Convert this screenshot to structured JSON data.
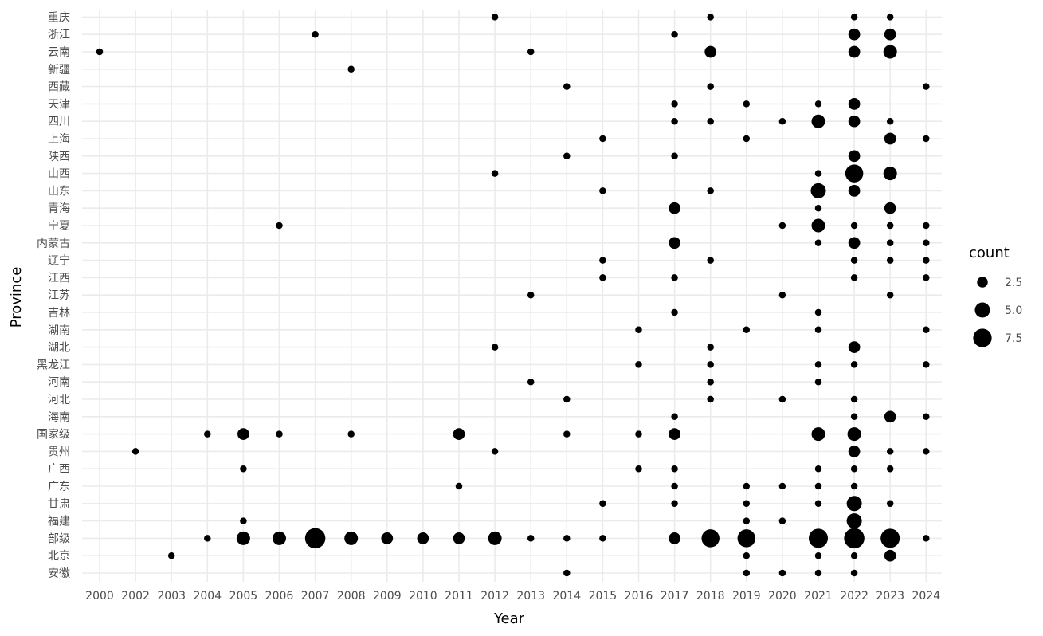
{
  "chart_data": {
    "type": "scatter",
    "title": "",
    "xlabel": "Year",
    "ylabel": "Province",
    "legend_title": "count",
    "legend_position": "right",
    "grid": true,
    "point_color": "#000000",
    "x_categories": [
      "2000",
      "2002",
      "2003",
      "2004",
      "2005",
      "2006",
      "2007",
      "2008",
      "2009",
      "2010",
      "2011",
      "2012",
      "2013",
      "2014",
      "2015",
      "2016",
      "2017",
      "2018",
      "2019",
      "2020",
      "2021",
      "2022",
      "2023",
      "2024"
    ],
    "y_categories": [
      "安徽",
      "北京",
      "部级",
      "福建",
      "甘肃",
      "广东",
      "广西",
      "贵州",
      "国家级",
      "海南",
      "河北",
      "河南",
      "黑龙江",
      "湖北",
      "湖南",
      "吉林",
      "江苏",
      "江西",
      "辽宁",
      "内蒙古",
      "宁夏",
      "青海",
      "山东",
      "山西",
      "陕西",
      "上海",
      "四川",
      "天津",
      "西藏",
      "新疆",
      "云南",
      "浙江",
      "重庆"
    ],
    "size_legend": [
      {
        "label": "2.5",
        "value": 2.5
      },
      {
        "label": "5.0",
        "value": 5.0
      },
      {
        "label": "7.5",
        "value": 7.5
      }
    ],
    "points": [
      {
        "province": "重庆",
        "year": "2012",
        "count": 1
      },
      {
        "province": "重庆",
        "year": "2018",
        "count": 1
      },
      {
        "province": "重庆",
        "year": "2022",
        "count": 1
      },
      {
        "province": "重庆",
        "year": "2023",
        "count": 1
      },
      {
        "province": "浙江",
        "year": "2007",
        "count": 1
      },
      {
        "province": "浙江",
        "year": "2017",
        "count": 1
      },
      {
        "province": "浙江",
        "year": "2022",
        "count": 3
      },
      {
        "province": "浙江",
        "year": "2023",
        "count": 3
      },
      {
        "province": "云南",
        "year": "2000",
        "count": 1
      },
      {
        "province": "云南",
        "year": "2013",
        "count": 1
      },
      {
        "province": "云南",
        "year": "2018",
        "count": 3
      },
      {
        "province": "云南",
        "year": "2022",
        "count": 3
      },
      {
        "province": "云南",
        "year": "2023",
        "count": 4
      },
      {
        "province": "新疆",
        "year": "2008",
        "count": 1
      },
      {
        "province": "西藏",
        "year": "2014",
        "count": 1
      },
      {
        "province": "西藏",
        "year": "2018",
        "count": 1
      },
      {
        "province": "西藏",
        "year": "2024",
        "count": 1
      },
      {
        "province": "天津",
        "year": "2017",
        "count": 1
      },
      {
        "province": "天津",
        "year": "2019",
        "count": 1
      },
      {
        "province": "天津",
        "year": "2021",
        "count": 1
      },
      {
        "province": "天津",
        "year": "2022",
        "count": 3
      },
      {
        "province": "四川",
        "year": "2017",
        "count": 1
      },
      {
        "province": "四川",
        "year": "2018",
        "count": 1
      },
      {
        "province": "四川",
        "year": "2020",
        "count": 1
      },
      {
        "province": "四川",
        "year": "2021",
        "count": 4
      },
      {
        "province": "四川",
        "year": "2022",
        "count": 3
      },
      {
        "province": "四川",
        "year": "2023",
        "count": 1
      },
      {
        "province": "上海",
        "year": "2015",
        "count": 1
      },
      {
        "province": "上海",
        "year": "2019",
        "count": 1
      },
      {
        "province": "上海",
        "year": "2023",
        "count": 3
      },
      {
        "province": "上海",
        "year": "2024",
        "count": 1
      },
      {
        "province": "陕西",
        "year": "2014",
        "count": 1
      },
      {
        "province": "陕西",
        "year": "2017",
        "count": 1
      },
      {
        "province": "陕西",
        "year": "2022",
        "count": 3
      },
      {
        "province": "山西",
        "year": "2012",
        "count": 1
      },
      {
        "province": "山西",
        "year": "2021",
        "count": 1
      },
      {
        "province": "山西",
        "year": "2022",
        "count": 7
      },
      {
        "province": "山西",
        "year": "2023",
        "count": 4
      },
      {
        "province": "山东",
        "year": "2015",
        "count": 1
      },
      {
        "province": "山东",
        "year": "2018",
        "count": 1
      },
      {
        "province": "山东",
        "year": "2021",
        "count": 5
      },
      {
        "province": "山东",
        "year": "2022",
        "count": 3
      },
      {
        "province": "青海",
        "year": "2017",
        "count": 3
      },
      {
        "province": "青海",
        "year": "2021",
        "count": 1
      },
      {
        "province": "青海",
        "year": "2023",
        "count": 3
      },
      {
        "province": "宁夏",
        "year": "2006",
        "count": 1
      },
      {
        "province": "宁夏",
        "year": "2020",
        "count": 1
      },
      {
        "province": "宁夏",
        "year": "2021",
        "count": 4
      },
      {
        "province": "宁夏",
        "year": "2022",
        "count": 1
      },
      {
        "province": "宁夏",
        "year": "2023",
        "count": 1
      },
      {
        "province": "宁夏",
        "year": "2024",
        "count": 1
      },
      {
        "province": "内蒙古",
        "year": "2017",
        "count": 3
      },
      {
        "province": "内蒙古",
        "year": "2021",
        "count": 1
      },
      {
        "province": "内蒙古",
        "year": "2022",
        "count": 3
      },
      {
        "province": "内蒙古",
        "year": "2023",
        "count": 1
      },
      {
        "province": "内蒙古",
        "year": "2024",
        "count": 1
      },
      {
        "province": "辽宁",
        "year": "2015",
        "count": 1
      },
      {
        "province": "辽宁",
        "year": "2018",
        "count": 1
      },
      {
        "province": "辽宁",
        "year": "2022",
        "count": 1
      },
      {
        "province": "辽宁",
        "year": "2023",
        "count": 1
      },
      {
        "province": "辽宁",
        "year": "2024",
        "count": 1
      },
      {
        "province": "江西",
        "year": "2015",
        "count": 1
      },
      {
        "province": "江西",
        "year": "2017",
        "count": 1
      },
      {
        "province": "江西",
        "year": "2022",
        "count": 1
      },
      {
        "province": "江西",
        "year": "2024",
        "count": 1
      },
      {
        "province": "江苏",
        "year": "2013",
        "count": 1
      },
      {
        "province": "江苏",
        "year": "2020",
        "count": 1
      },
      {
        "province": "江苏",
        "year": "2023",
        "count": 1
      },
      {
        "province": "吉林",
        "year": "2017",
        "count": 1
      },
      {
        "province": "吉林",
        "year": "2021",
        "count": 1
      },
      {
        "province": "湖南",
        "year": "2016",
        "count": 1
      },
      {
        "province": "湖南",
        "year": "2019",
        "count": 1
      },
      {
        "province": "湖南",
        "year": "2021",
        "count": 1
      },
      {
        "province": "湖南",
        "year": "2024",
        "count": 1
      },
      {
        "province": "湖北",
        "year": "2012",
        "count": 1
      },
      {
        "province": "湖北",
        "year": "2018",
        "count": 1
      },
      {
        "province": "湖北",
        "year": "2022",
        "count": 3
      },
      {
        "province": "黑龙江",
        "year": "2016",
        "count": 1
      },
      {
        "province": "黑龙江",
        "year": "2018",
        "count": 1
      },
      {
        "province": "黑龙江",
        "year": "2021",
        "count": 1
      },
      {
        "province": "黑龙江",
        "year": "2022",
        "count": 1
      },
      {
        "province": "黑龙江",
        "year": "2024",
        "count": 1
      },
      {
        "province": "河南",
        "year": "2013",
        "count": 1
      },
      {
        "province": "河南",
        "year": "2018",
        "count": 1
      },
      {
        "province": "河南",
        "year": "2021",
        "count": 1
      },
      {
        "province": "河北",
        "year": "2014",
        "count": 1
      },
      {
        "province": "河北",
        "year": "2018",
        "count": 1
      },
      {
        "province": "河北",
        "year": "2020",
        "count": 1
      },
      {
        "province": "河北",
        "year": "2022",
        "count": 1
      },
      {
        "province": "海南",
        "year": "2017",
        "count": 1
      },
      {
        "province": "海南",
        "year": "2022",
        "count": 1
      },
      {
        "province": "海南",
        "year": "2023",
        "count": 3
      },
      {
        "province": "海南",
        "year": "2024",
        "count": 1
      },
      {
        "province": "国家级",
        "year": "2004",
        "count": 1
      },
      {
        "province": "国家级",
        "year": "2005",
        "count": 3
      },
      {
        "province": "国家级",
        "year": "2006",
        "count": 1
      },
      {
        "province": "国家级",
        "year": "2008",
        "count": 1
      },
      {
        "province": "国家级",
        "year": "2011",
        "count": 3
      },
      {
        "province": "国家级",
        "year": "2014",
        "count": 1
      },
      {
        "province": "国家级",
        "year": "2016",
        "count": 1
      },
      {
        "province": "国家级",
        "year": "2017",
        "count": 3
      },
      {
        "province": "国家级",
        "year": "2021",
        "count": 4
      },
      {
        "province": "国家级",
        "year": "2022",
        "count": 4
      },
      {
        "province": "贵州",
        "year": "2002",
        "count": 1
      },
      {
        "province": "贵州",
        "year": "2012",
        "count": 1
      },
      {
        "province": "贵州",
        "year": "2022",
        "count": 3
      },
      {
        "province": "贵州",
        "year": "2023",
        "count": 1
      },
      {
        "province": "贵州",
        "year": "2024",
        "count": 1
      },
      {
        "province": "广西",
        "year": "2005",
        "count": 1
      },
      {
        "province": "广西",
        "year": "2016",
        "count": 1
      },
      {
        "province": "广西",
        "year": "2017",
        "count": 1
      },
      {
        "province": "广西",
        "year": "2021",
        "count": 1
      },
      {
        "province": "广西",
        "year": "2022",
        "count": 1
      },
      {
        "province": "广西",
        "year": "2023",
        "count": 1
      },
      {
        "province": "广东",
        "year": "2011",
        "count": 1
      },
      {
        "province": "广东",
        "year": "2017",
        "count": 1
      },
      {
        "province": "广东",
        "year": "2019",
        "count": 1
      },
      {
        "province": "广东",
        "year": "2020",
        "count": 1
      },
      {
        "province": "广东",
        "year": "2021",
        "count": 1
      },
      {
        "province": "广东",
        "year": "2022",
        "count": 1
      },
      {
        "province": "甘肃",
        "year": "2015",
        "count": 1
      },
      {
        "province": "甘肃",
        "year": "2017",
        "count": 1
      },
      {
        "province": "甘肃",
        "year": "2019",
        "count": 1
      },
      {
        "province": "甘肃",
        "year": "2021",
        "count": 1
      },
      {
        "province": "甘肃",
        "year": "2022",
        "count": 5
      },
      {
        "province": "甘肃",
        "year": "2023",
        "count": 1
      },
      {
        "province": "福建",
        "year": "2005",
        "count": 1
      },
      {
        "province": "福建",
        "year": "2019",
        "count": 1
      },
      {
        "province": "福建",
        "year": "2020",
        "count": 1
      },
      {
        "province": "福建",
        "year": "2022",
        "count": 5
      },
      {
        "province": "部级",
        "year": "2004",
        "count": 1
      },
      {
        "province": "部级",
        "year": "2005",
        "count": 4
      },
      {
        "province": "部级",
        "year": "2006",
        "count": 4
      },
      {
        "province": "部级",
        "year": "2007",
        "count": 9
      },
      {
        "province": "部级",
        "year": "2008",
        "count": 4
      },
      {
        "province": "部级",
        "year": "2009",
        "count": 3
      },
      {
        "province": "部级",
        "year": "2010",
        "count": 3
      },
      {
        "province": "部级",
        "year": "2011",
        "count": 3
      },
      {
        "province": "部级",
        "year": "2012",
        "count": 4
      },
      {
        "province": "部级",
        "year": "2013",
        "count": 1
      },
      {
        "province": "部级",
        "year": "2014",
        "count": 1
      },
      {
        "province": "部级",
        "year": "2015",
        "count": 1
      },
      {
        "province": "部级",
        "year": "2017",
        "count": 3
      },
      {
        "province": "部级",
        "year": "2018",
        "count": 7
      },
      {
        "province": "部级",
        "year": "2019",
        "count": 7
      },
      {
        "province": "部级",
        "year": "2021",
        "count": 8
      },
      {
        "province": "部级",
        "year": "2022",
        "count": 9
      },
      {
        "province": "部级",
        "year": "2023",
        "count": 8
      },
      {
        "province": "部级",
        "year": "2024",
        "count": 1
      },
      {
        "province": "北京",
        "year": "2003",
        "count": 1
      },
      {
        "province": "北京",
        "year": "2019",
        "count": 1
      },
      {
        "province": "北京",
        "year": "2021",
        "count": 1
      },
      {
        "province": "北京",
        "year": "2022",
        "count": 1
      },
      {
        "province": "北京",
        "year": "2023",
        "count": 3
      },
      {
        "province": "安徽",
        "year": "2014",
        "count": 1
      },
      {
        "province": "安徽",
        "year": "2019",
        "count": 1
      },
      {
        "province": "安徽",
        "year": "2020",
        "count": 1
      },
      {
        "province": "安徽",
        "year": "2021",
        "count": 1
      },
      {
        "province": "安徽",
        "year": "2022",
        "count": 1
      }
    ]
  }
}
